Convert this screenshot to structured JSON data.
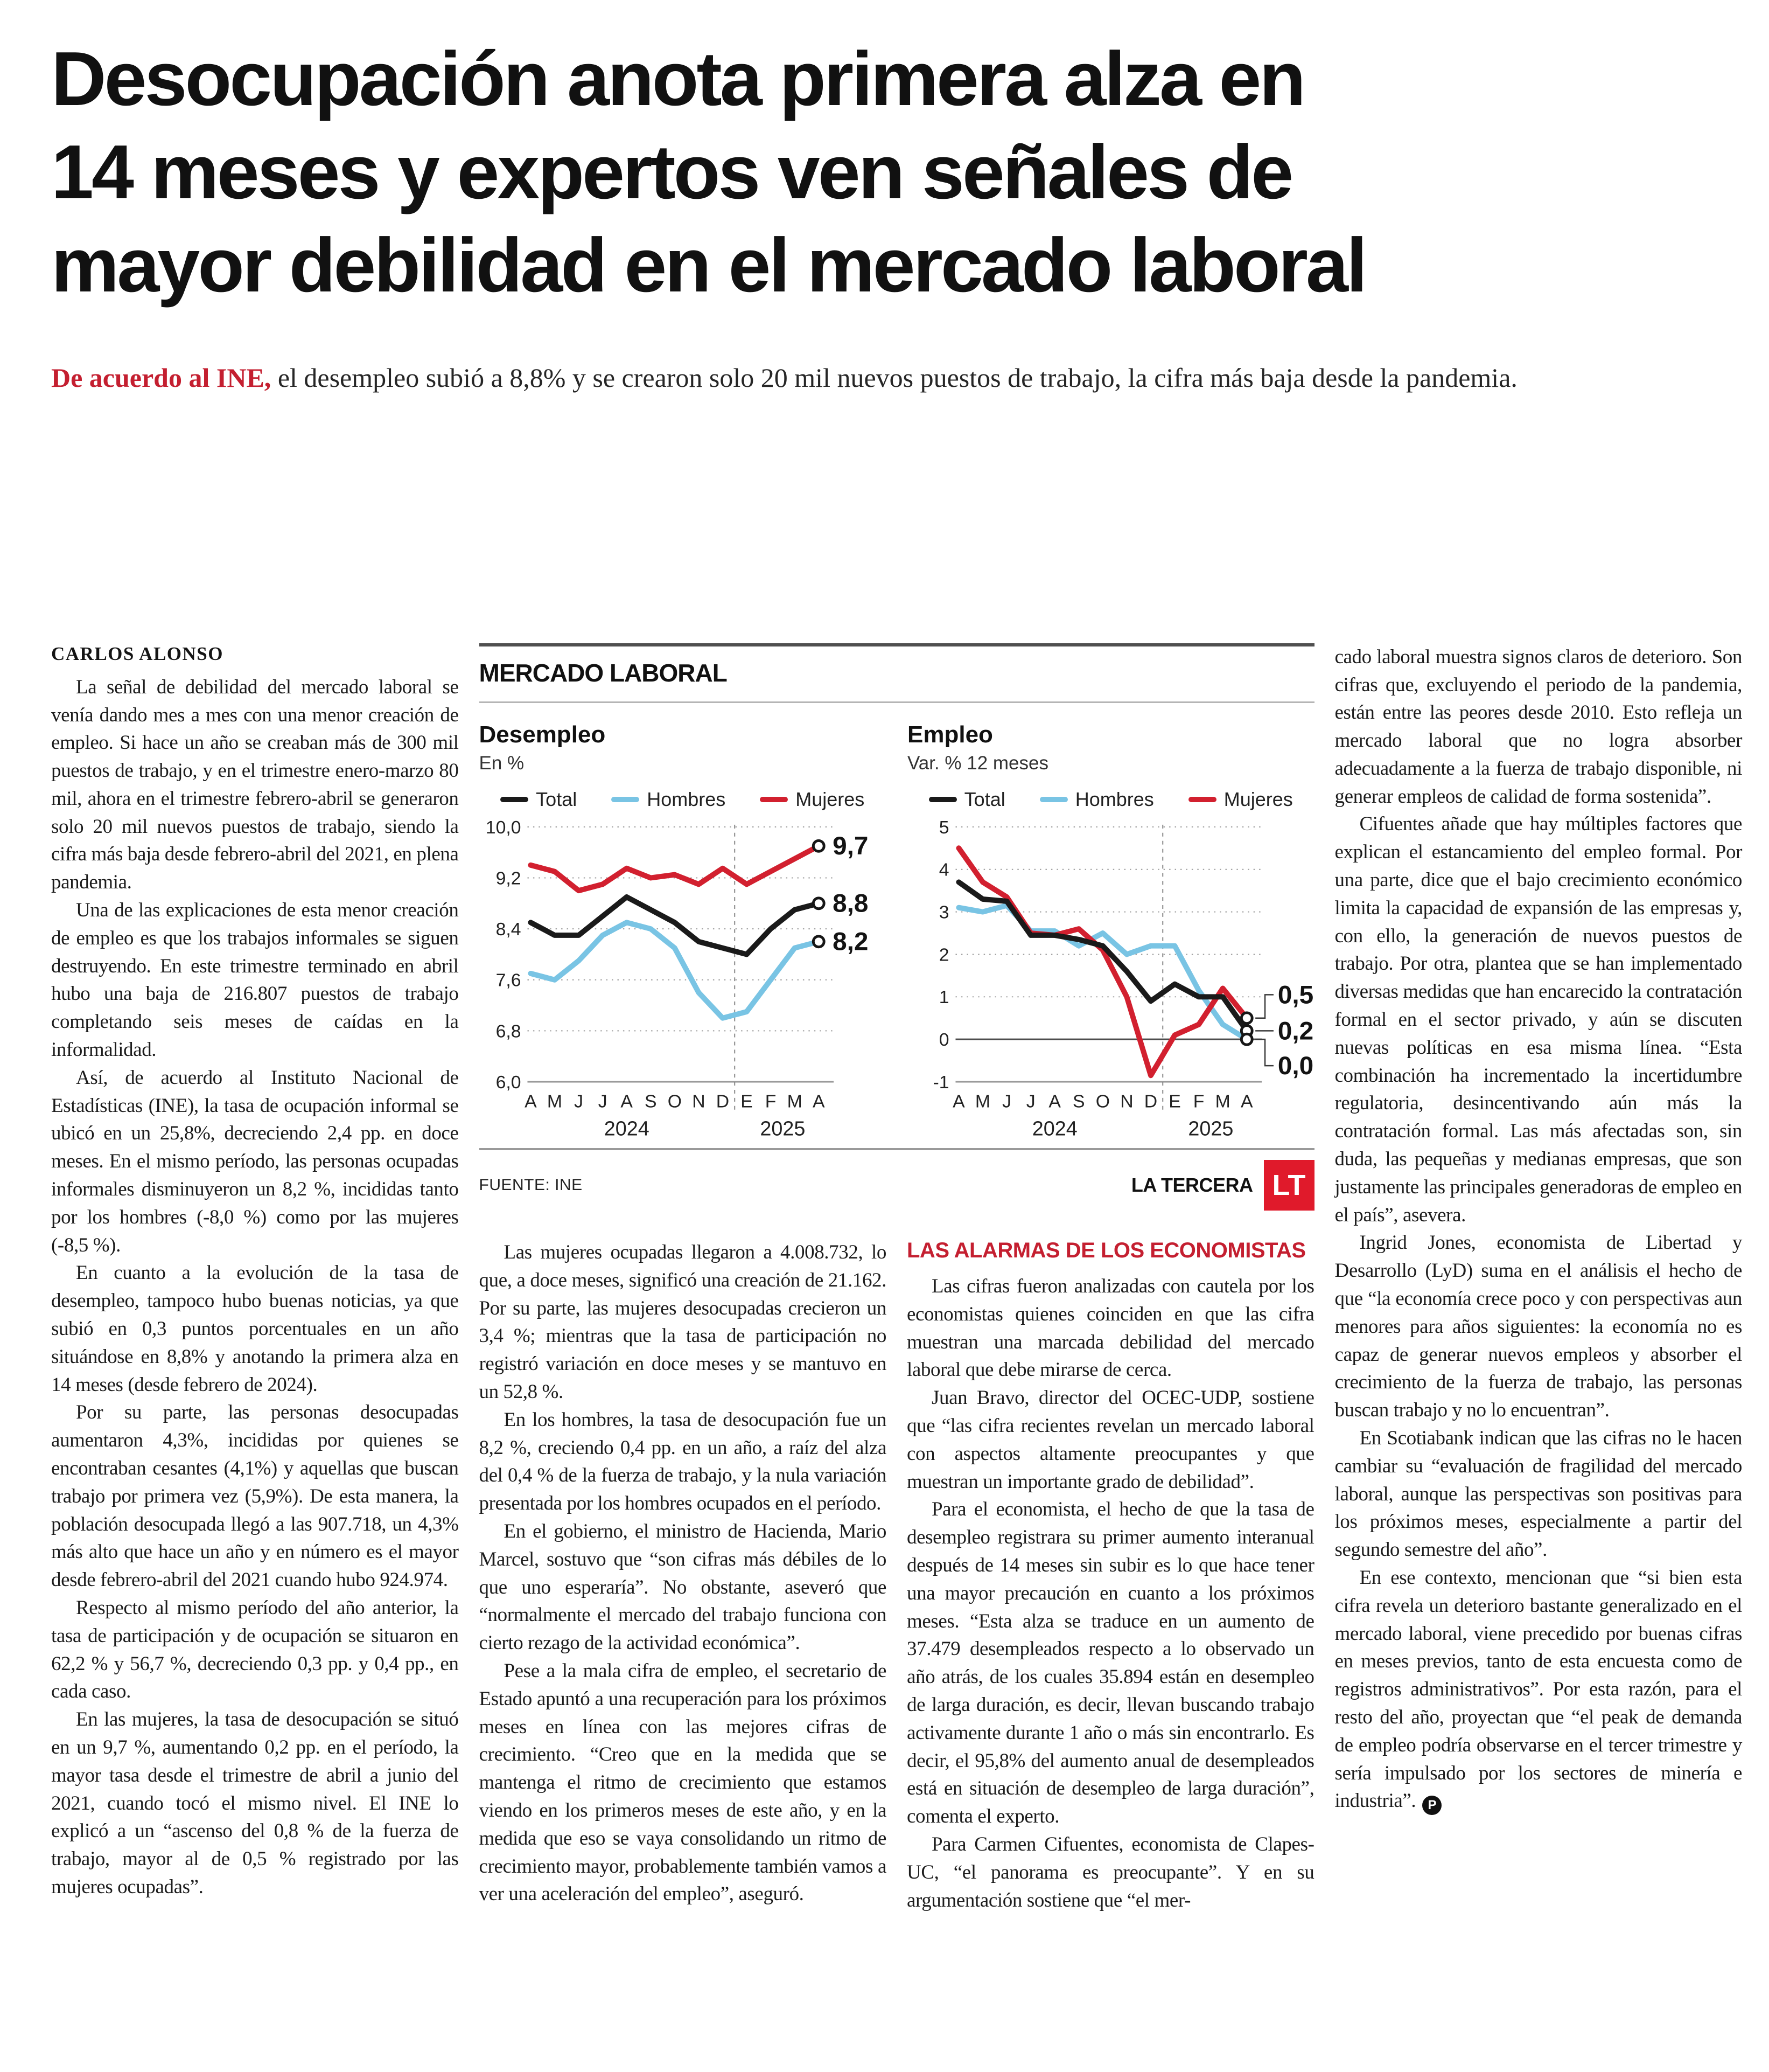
{
  "headline": {
    "lines": [
      "Desocupación anota primera alza en",
      "14 meses y expertos ven señales de",
      "mayor debilidad en el mercado laboral"
    ]
  },
  "deck": {
    "lead": "De acuerdo al INE,",
    "rest": " el desempleo subió a 8,8% y se crearon solo 20 mil nuevos puestos de trabajo, la cifra más baja desde la pandemia."
  },
  "article": {
    "byline": "CARLOS ALONSO",
    "end_mark": "P",
    "col1": [
      "La señal de debilidad del mercado laboral se venía dando mes a mes con una menor creación de empleo. Si hace un año se creaban más de 300 mil puestos de trabajo, y en el trimestre enero-marzo 80 mil, ahora en el trimestre febrero-abril se generaron solo 20 mil nuevos puestos de trabajo, siendo la cifra más baja desde febrero-abril del 2021, en plena pandemia.",
      "Una de las explicaciones de esta menor creación de empleo es que los trabajos informales se siguen destruyendo. En este trimestre terminado en abril hubo una baja de 216.807 puestos de trabajo completando seis meses de caídas en la informalidad.",
      "Así, de acuerdo al Instituto Nacional de Estadísticas (INE), la tasa de ocupación informal se ubicó en un 25,8%, decreciendo 2,4 pp. en doce meses. En el mismo período, las personas ocupadas informales disminuyeron un 8,2 %, incididas tanto por los hombres (-8,0 %) como por las mujeres (-8,5 %).",
      "En cuanto a la evolución de la tasa de desempleo, tampoco hubo buenas noticias, ya que subió en 0,3 puntos porcentuales en un año situándose en 8,8% y anotando la primera alza en 14 meses (desde febrero de 2024).",
      "Por su parte, las personas desocupadas aumentaron 4,3%, incididas por quienes se encontraban cesantes (4,1%) y aquellas que buscan trabajo por primera vez (5,9%). De esta manera, la población desocupada llegó a las 907.718, un 4,3% más alto que hace un año y en número es el mayor desde febrero-abril del 2021 cuando hubo 924.974.",
      "Respecto al mismo período del año anterior, la tasa de participación y de ocupación se situaron en 62,2 % y 56,7 %, decreciendo 0,3 pp. y 0,4 pp., en cada caso.",
      "En las mujeres, la tasa de desocupación se situó en un 9,7 %, aumentando 0,2 pp. en el período, la mayor tasa desde el trimestre de abril a junio del 2021, cuando tocó el mismo nivel. El INE lo explicó a un “ascenso del 0,8 % de la fuerza de trabajo, mayor al de 0,5 % registrado por las mujeres ocupadas”."
    ],
    "col2": [
      "Las mujeres ocupadas llegaron a 4.008.732, lo que, a doce meses, significó una creación de 21.162. Por su parte, las mujeres desocupadas crecieron un 3,4 %; mientras que la tasa de participación no registró variación en doce meses y se mantuvo en un 52,8 %.",
      "En los hombres, la tasa de desocupación fue un 8,2 %, creciendo 0,4 pp. en un año, a raíz del alza del 0,4 % de la fuerza de trabajo, y la nula variación presentada por los hombres ocupados en el período.",
      "En el gobierno, el ministro de Hacienda, Mario Marcel, sostuvo que “son cifras más débiles de lo que uno esperaría”. No obstante, aseveró que “normalmente el mercado del trabajo funciona con cierto rezago de la actividad económica”.",
      "Pese a la mala cifra de empleo, el secretario de Estado apuntó a una recuperación para los próximos meses en línea con las mejores cifras de crecimiento. “Creo que en la medida que se mantenga el ritmo de crecimiento que estamos viendo en los primeros meses de este año, y en la medida que eso se vaya consolidando un ritmo de crecimiento mayor, probablemente también vamos a ver una aceleración del empleo”, aseguró."
    ],
    "col3_heading": "LAS ALARMAS DE LOS ECONOMISTAS",
    "col3": [
      "Las cifras fueron analizadas con cautela por los economistas quienes coinciden en que las cifra muestran una marcada debilidad del mercado laboral que debe mirarse de cerca.",
      "Juan Bravo, director del OCEC-UDP, sostiene que “las cifra recientes revelan un mercado laboral con aspectos altamente preocupantes y que muestran un importante grado de debilidad”.",
      "Para el economista, el hecho de que la tasa de desempleo registrara su primer aumento interanual después de 14 meses sin subir es lo que hace tener una mayor precaución en cuanto a los próximos meses. “Esta alza se traduce en un aumento de 37.479 desempleados respecto a lo observado un año atrás, de los cuales 35.894 están en desempleo de larga duración, es decir, llevan buscando trabajo activamente durante 1 año o más sin encontrarlo. Es decir, el 95,8% del aumento anual de desempleados está en situación de desempleo de larga duración”, comenta el experto.",
      "Para Carmen Cifuentes, economista de Clapes-UC, “el panorama es preocupante”. Y en su argumentación sostiene que “el mer-"
    ],
    "col4": [
      "cado laboral muestra signos claros de deterioro. Son cifras que, excluyendo el periodo de la pandemia, están entre las peores desde 2010. Esto refleja un mercado laboral que no logra absorber adecuadamente a la fuerza de trabajo disponible, ni generar empleos de calidad de forma sostenida”.",
      "Cifuentes añade que hay múltiples factores que explican el estancamiento del empleo formal. Por una parte, dice que el bajo crecimiento económico limita la capacidad de expansión de las empresas y, con ello, la generación de nuevos puestos de trabajo. Por otra, plantea que se han implementado diversas medidas que han encarecido la contratación formal en el sector privado, y aún se discuten nuevas políticas en esa misma línea. “Esta combinación ha incrementado la incertidumbre regulatoria, desincentivando aún más la contratación formal. Las más afectadas son, sin duda, las pequeñas y medianas empresas, que son justamente las principales generadoras de empleo en el país”, asevera.",
      "Ingrid Jones, economista de Libertad y Desarrollo (LyD) suma en el análisis el hecho de que “la economía crece poco y con perspectivas aun menores para años siguientes: la economía no es capaz de generar nuevos empleos y absorber el crecimiento de la fuerza de trabajo, las personas buscan trabajo y no lo encuentran”.",
      "En Scotiabank indican que las cifras no le hacen cambiar su “evaluación de fragilidad del mercado laboral, aunque las perspectivas son positivas para los próximos meses, especialmente a partir del segundo semestre del año”.",
      "En ese contexto, mencionan que “si bien esta cifra revela un deterioro bastante generalizado en el mercado laboral, viene precedido por buenas cifras en meses previos, tanto de esta encuesta como de registros administrativos”. Por esta razón, para el resto del año, proyectan que “el peak de demanda de empleo podría observarse en el tercer trimestre y sería impulsado por los sectores de minería e industria”."
    ]
  },
  "chart_block": {
    "kicker": "MERCADO LABORAL",
    "source": "FUENTE: INE",
    "credit": "LA TERCERA",
    "logo_text": "LT"
  },
  "chart_data": [
    {
      "type": "line",
      "title": "Desempleo",
      "subtitle": "En %",
      "x": [
        "A",
        "M",
        "J",
        "J",
        "A",
        "S",
        "O",
        "N",
        "D",
        "E",
        "F",
        "M",
        "A"
      ],
      "x_years": [
        "2024",
        "2025"
      ],
      "year_divider_between": [
        8,
        9
      ],
      "ylim": [
        6.0,
        10.0
      ],
      "y_ticks": [
        10.0,
        9.2,
        8.4,
        7.6,
        6.8,
        6.0
      ],
      "y_tick_labels": [
        "10,0",
        "9,2",
        "8,4",
        "7,6",
        "6,8",
        "6,0"
      ],
      "grid": "dotted-horizontal",
      "legend_position": "top",
      "series": [
        {
          "name": "Total",
          "color": "#1a1a1a",
          "values": [
            8.5,
            8.3,
            8.3,
            8.6,
            8.9,
            8.7,
            8.5,
            8.2,
            8.1,
            8.0,
            8.4,
            8.7,
            8.8
          ]
        },
        {
          "name": "Hombres",
          "color": "#79c4e4",
          "values": [
            7.7,
            7.6,
            7.9,
            8.3,
            8.5,
            8.4,
            8.1,
            7.4,
            7.0,
            7.1,
            7.6,
            8.1,
            8.2
          ]
        },
        {
          "name": "Mujeres",
          "color": "#d2202f",
          "values": [
            9.4,
            9.3,
            9.0,
            9.1,
            9.35,
            9.2,
            9.25,
            9.1,
            9.35,
            9.1,
            9.3,
            9.5,
            9.7
          ]
        }
      ],
      "end_labels": [
        {
          "text": "9,7",
          "series": "Mujeres"
        },
        {
          "text": "8,8",
          "series": "Total"
        },
        {
          "text": "8,2",
          "series": "Hombres"
        }
      ]
    },
    {
      "type": "line",
      "title": "Empleo",
      "subtitle": "Var. % 12 meses",
      "x": [
        "A",
        "M",
        "J",
        "J",
        "A",
        "S",
        "O",
        "N",
        "D",
        "E",
        "F",
        "M",
        "A"
      ],
      "x_years": [
        "2024",
        "2025"
      ],
      "year_divider_between": [
        8,
        9
      ],
      "ylim": [
        -1,
        5
      ],
      "y_ticks": [
        5,
        4,
        3,
        2,
        1,
        0,
        -1
      ],
      "y_tick_labels": [
        "5",
        "4",
        "3",
        "2",
        "1",
        "0",
        "-1"
      ],
      "zero_solid": true,
      "grid": "dotted-horizontal",
      "legend_position": "top",
      "series": [
        {
          "name": "Total",
          "color": "#1a1a1a",
          "values": [
            3.7,
            3.3,
            3.25,
            2.45,
            2.45,
            2.35,
            2.2,
            1.6,
            0.9,
            1.3,
            1.0,
            1.0,
            0.2
          ]
        },
        {
          "name": "Hombres",
          "color": "#79c4e4",
          "values": [
            3.1,
            3.0,
            3.15,
            2.55,
            2.55,
            2.2,
            2.5,
            2.0,
            2.2,
            2.2,
            1.15,
            0.35,
            0.0
          ]
        },
        {
          "name": "Mujeres",
          "color": "#d2202f",
          "values": [
            4.5,
            3.7,
            3.35,
            2.5,
            2.45,
            2.6,
            2.1,
            1.0,
            -0.85,
            0.1,
            0.35,
            1.2,
            0.5
          ]
        }
      ],
      "end_labels": [
        {
          "text": "0,5",
          "series": "Mujeres",
          "label_value": 1.05
        },
        {
          "text": "0,2",
          "series": "Total",
          "label_value": 0.2
        },
        {
          "text": "0,0",
          "series": "Hombres",
          "label_value": -0.62
        }
      ]
    }
  ],
  "colors": {
    "accent_red": "#c41f30",
    "series_black": "#1a1a1a",
    "hombres_blue": "#79c4e4",
    "mujeres_red": "#d2202f",
    "logo_red": "#e01a2b",
    "grid_gray": "#9a9a9a"
  }
}
